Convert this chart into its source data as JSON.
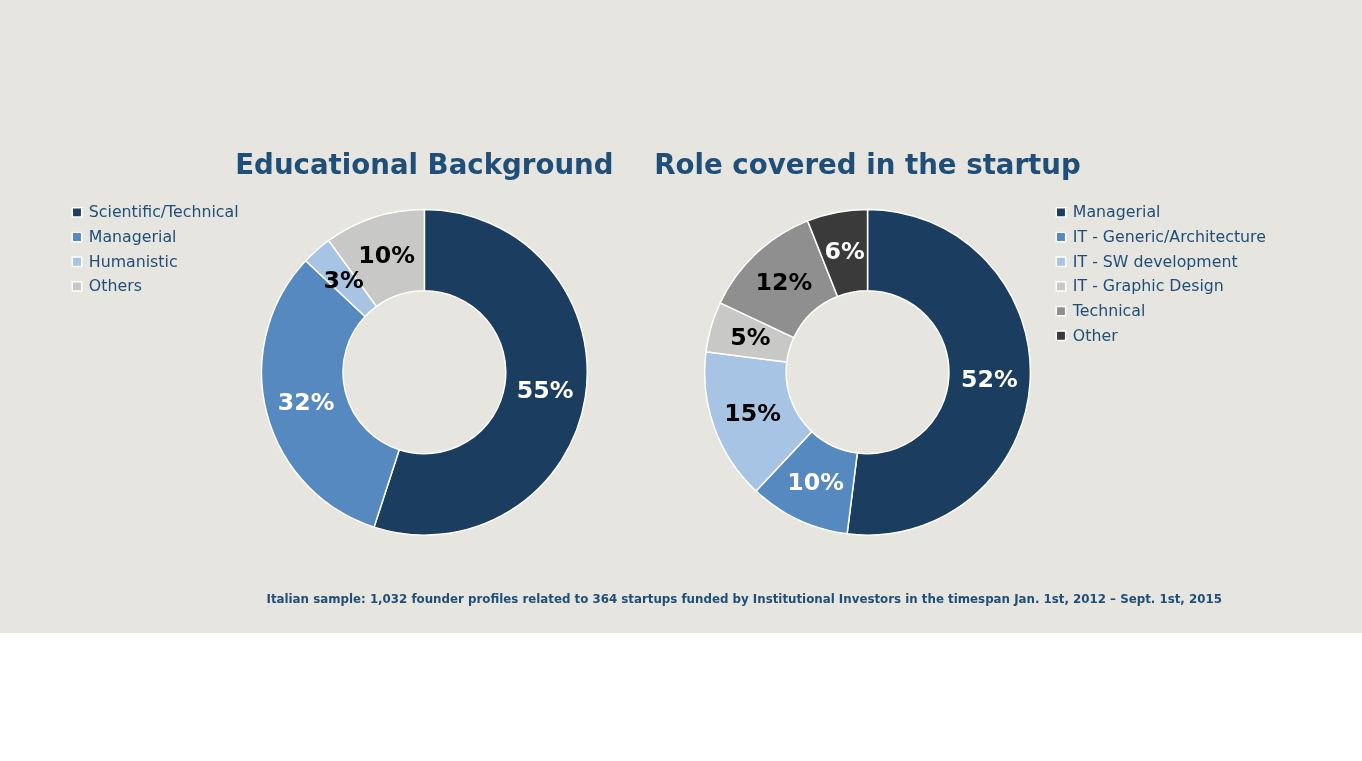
{
  "chart_data": [
    {
      "type": "donut",
      "title": "Educational Background",
      "categories": [
        "Scientific/Technical",
        "Managerial",
        "Humanistic",
        "Others"
      ],
      "values": [
        55,
        32,
        3,
        10
      ],
      "value_labels": [
        "55%",
        "32%",
        "3%",
        "10%"
      ],
      "colors": [
        "#1b3d5f",
        "#5589c0",
        "#a7c4e4",
        "#c8c8c6"
      ],
      "legend": "left"
    },
    {
      "type": "donut",
      "title": "Role covered in the startup",
      "categories": [
        "Managerial",
        "IT - Generic/Architecture",
        "IT - SW development",
        "IT - Graphic Design",
        "Technical",
        "Other"
      ],
      "values": [
        52,
        10,
        15,
        5,
        12,
        6
      ],
      "value_labels": [
        "52%",
        "10%",
        "15%",
        "5%",
        "12%",
        "6%"
      ],
      "colors": [
        "#1b3d5f",
        "#5589c0",
        "#a7c4e4",
        "#c8c8c6",
        "#8f8f8f",
        "#3a3a3a"
      ],
      "legend": "right",
      "annotations": [
        "Italian sample: 1,032 founder profiles related to 364 startups funded by Institutional Investors in the timespan Jan. 1st, 2012 – Sept. 1st, 2015"
      ]
    }
  ]
}
